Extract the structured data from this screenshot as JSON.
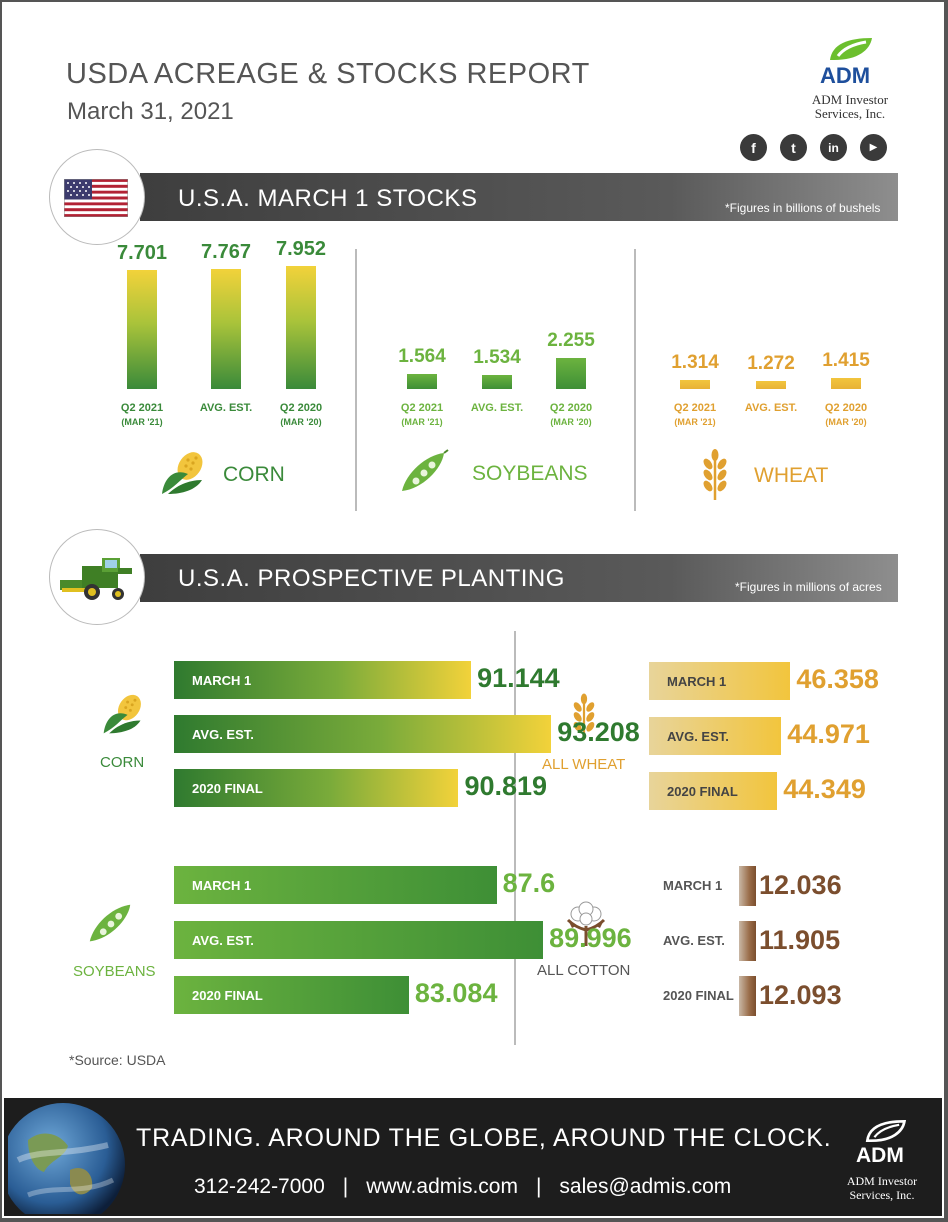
{
  "header": {
    "title": "USDA ACREAGE & STOCKS REPORT",
    "date": "March 31, 2021",
    "brand": {
      "logo_text": "ADM",
      "line1": "ADM Investor",
      "line2": "Services, Inc."
    },
    "social": [
      {
        "icon": "facebook-icon",
        "glyph": "f"
      },
      {
        "icon": "twitter-icon",
        "glyph": "t"
      },
      {
        "icon": "linkedin-icon",
        "glyph": "in"
      },
      {
        "icon": "youtube-icon",
        "glyph": "▶"
      }
    ]
  },
  "colors": {
    "corn": "#3a8a3a",
    "soy": "#6cb33f",
    "wheat": "#e0a030",
    "cotton": "#7b4e2e"
  },
  "stocks": {
    "title": "U.S.A. MARCH 1 STOCKS",
    "note": "*Figures in billions of bushels"
  },
  "planting": {
    "title": "U.S.A. PROSPECTIVE PLANTING",
    "note": "*Figures in millions of acres"
  },
  "chart_data": [
    {
      "type": "bar",
      "title": "CORN",
      "categories": [
        "Q2 2021 (MAR '21)",
        "AVG. EST.",
        "Q2 2020 (MAR '20)"
      ],
      "category_main": [
        "Q2 2021",
        "AVG. EST.",
        "Q2 2020"
      ],
      "category_sub": [
        "(MAR '21)",
        "",
        "(MAR '20)"
      ],
      "values": [
        7.701,
        7.767,
        7.952
      ],
      "labels": [
        "7.701",
        "7.767",
        "7.952"
      ],
      "ylim": [
        0,
        8.0
      ]
    },
    {
      "type": "bar",
      "title": "SOYBEANS",
      "categories": [
        "Q2 2021 (MAR '21)",
        "AVG. EST.",
        "Q2 2020 (MAR '20)"
      ],
      "category_main": [
        "Q2 2021",
        "AVG. EST.",
        "Q2 2020"
      ],
      "category_sub": [
        "(MAR '21)",
        "",
        "(MAR '20)"
      ],
      "values": [
        1.564,
        1.534,
        2.255
      ],
      "labels": [
        "1.564",
        "1.534",
        "2.255"
      ],
      "ylim": [
        0,
        8.0
      ]
    },
    {
      "type": "bar",
      "title": "WHEAT",
      "categories": [
        "Q2 2021 (MAR '21)",
        "AVG. EST.",
        "Q2 2020 (MAR '20)"
      ],
      "category_main": [
        "Q2 2021",
        "AVG. EST.",
        "Q2 2020"
      ],
      "category_sub": [
        "(MAR '21)",
        "",
        "(MAR '20)"
      ],
      "values": [
        1.314,
        1.272,
        1.415
      ],
      "labels": [
        "1.314",
        "1.272",
        "1.415"
      ],
      "ylim": [
        0,
        8.0
      ]
    },
    {
      "type": "bar",
      "title": "CORN",
      "orientation": "horizontal",
      "categories": [
        "MARCH 1",
        "AVG. EST.",
        "2020 FINAL"
      ],
      "values": [
        91.144,
        93.208,
        90.819
      ],
      "labels": [
        "91.144",
        "93.208",
        "90.819"
      ]
    },
    {
      "type": "bar",
      "title": "SOYBEANS",
      "orientation": "horizontal",
      "categories": [
        "MARCH 1",
        "AVG. EST.",
        "2020 FINAL"
      ],
      "values": [
        87.6,
        89.996,
        83.084
      ],
      "labels": [
        "87.6",
        "89.996",
        "83.084"
      ]
    },
    {
      "type": "bar",
      "title": "ALL WHEAT",
      "orientation": "horizontal",
      "categories": [
        "MARCH 1",
        "AVG. EST.",
        "2020 FINAL"
      ],
      "values": [
        46.358,
        44.971,
        44.349
      ],
      "labels": [
        "46.358",
        "44.971",
        "44.349"
      ]
    },
    {
      "type": "bar",
      "title": "ALL COTTON",
      "orientation": "horizontal",
      "categories": [
        "MARCH 1",
        "AVG. EST.",
        "2020 FINAL"
      ],
      "values": [
        12.036,
        11.905,
        12.093
      ],
      "labels": [
        "12.036",
        "11.905",
        "12.093"
      ]
    }
  ],
  "source": "*Source: USDA",
  "footer": {
    "slogan": "TRADING. AROUND THE GLOBE, AROUND THE CLOCK.",
    "phone": "312-242-7000",
    "separator": "|",
    "website": "www.admis.com",
    "email": "sales@admis.com"
  }
}
